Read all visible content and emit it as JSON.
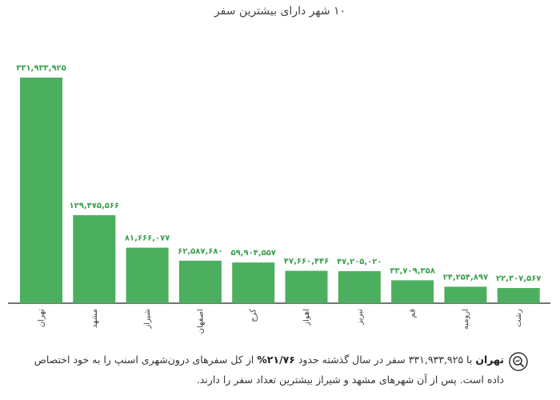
{
  "chart_data": {
    "type": "bar",
    "title": "۱۰ شهر دارای بیشترین سفر",
    "categories": [
      "تهران",
      "مشهد",
      "شیراز",
      "اصفهان",
      "کرج",
      "اهواز",
      "تبریز",
      "قم",
      "ارومیه",
      "رشت"
    ],
    "values": [
      331933925,
      129475566,
      81666077,
      62587680,
      59904557,
      47660446,
      47205020,
      33709358,
      24254897,
      22307567
    ],
    "value_labels": [
      "۳۳۱,۹۳۳,۹۲۵",
      "۱۲۹,۴۷۵,۵۶۶",
      "۸۱,۶۶۶,۰۷۷",
      "۶۲,۵۸۷,۶۸۰",
      "۵۹,۹۰۴,۵۵۷",
      "۴۷,۶۶۰,۴۴۶",
      "۴۷,۲۰۵,۰۲۰",
      "۳۳,۷۰۹,۳۵۸",
      "۲۴,۲۵۴,۸۹۷",
      "۲۲,۳۰۷,۵۶۷"
    ],
    "xlabel": "",
    "ylabel": "",
    "ylim": [
      0,
      340000000
    ],
    "grid": false,
    "legend": "none",
    "bar_color": "#4caf5f",
    "label_color": "#3aa04d"
  },
  "caption": {
    "city": "تهران",
    "text_1": " با ۳۳۱,۹۳۳,۹۲۵ سفر در سال گذشته حدود ",
    "percent": "۲۱/۷۶%",
    "text_2": " از کل سفرهای درون‌شهری اسنپ را به خود اختصاص داده است. پس از آن شهرهای مشهد و شیراز بیشترین تعداد سفر را دارند.",
    "icon": "search-chart-icon"
  }
}
